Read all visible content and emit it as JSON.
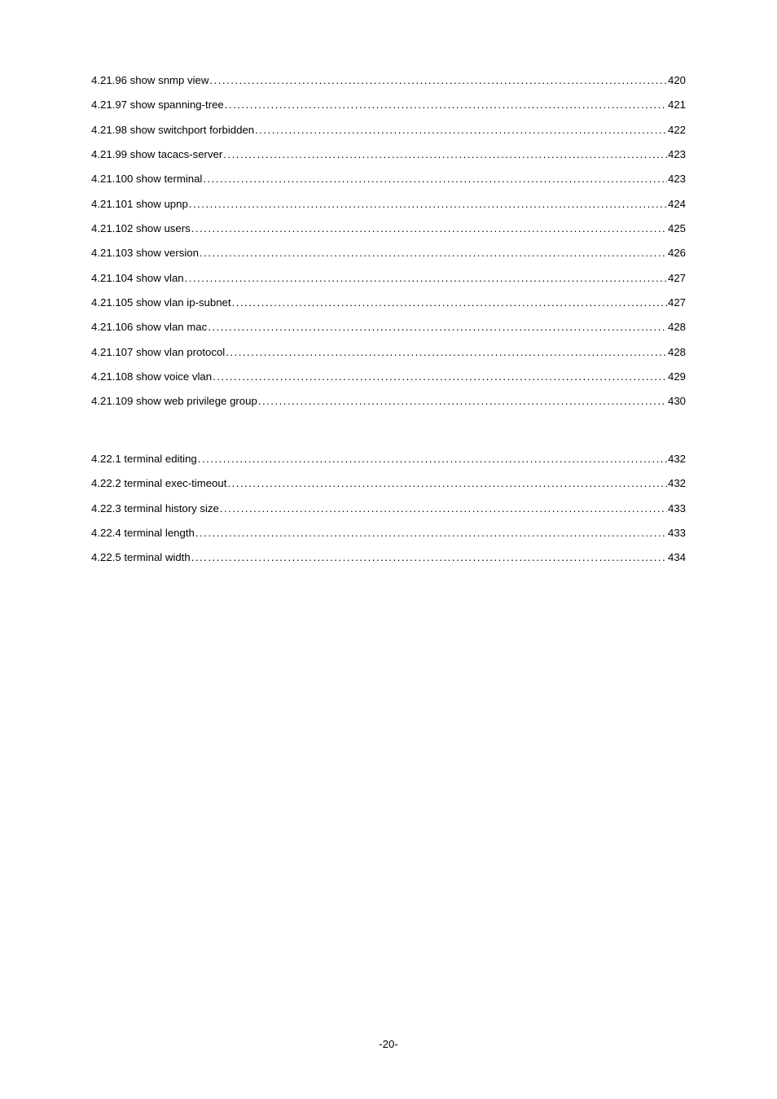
{
  "sections": [
    {
      "entries": [
        {
          "title": "4.21.96 show snmp view",
          "page": "420"
        },
        {
          "title": "4.21.97 show spanning-tree",
          "page": "421"
        },
        {
          "title": "4.21.98 show switchport forbidden",
          "page": "422"
        },
        {
          "title": "4.21.99 show tacacs-server",
          "page": "423"
        },
        {
          "title": "4.21.100 show terminal",
          "page": "423"
        },
        {
          "title": "4.21.101 show upnp",
          "page": "424"
        },
        {
          "title": "4.21.102 show users",
          "page": "425"
        },
        {
          "title": "4.21.103 show version",
          "page": "426"
        },
        {
          "title": "4.21.104 show vlan",
          "page": "427"
        },
        {
          "title": "4.21.105 show vlan ip-subnet",
          "page": "427"
        },
        {
          "title": "4.21.106 show vlan mac",
          "page": "428"
        },
        {
          "title": "4.21.107 show vlan protocol",
          "page": "428"
        },
        {
          "title": "4.21.108 show voice vlan",
          "page": "429"
        },
        {
          "title": "4.21.109 show web privilege group",
          "page": "430"
        }
      ]
    },
    {
      "entries": [
        {
          "title": "4.22.1 terminal editing",
          "page": "432"
        },
        {
          "title": "4.22.2 terminal exec-timeout",
          "page": "432"
        },
        {
          "title": "4.22.3 terminal history size",
          "page": "433"
        },
        {
          "title": "4.22.4 terminal length",
          "page": "433"
        },
        {
          "title": "4.22.5 terminal width",
          "page": "434"
        }
      ]
    }
  ],
  "footer": "-20-"
}
